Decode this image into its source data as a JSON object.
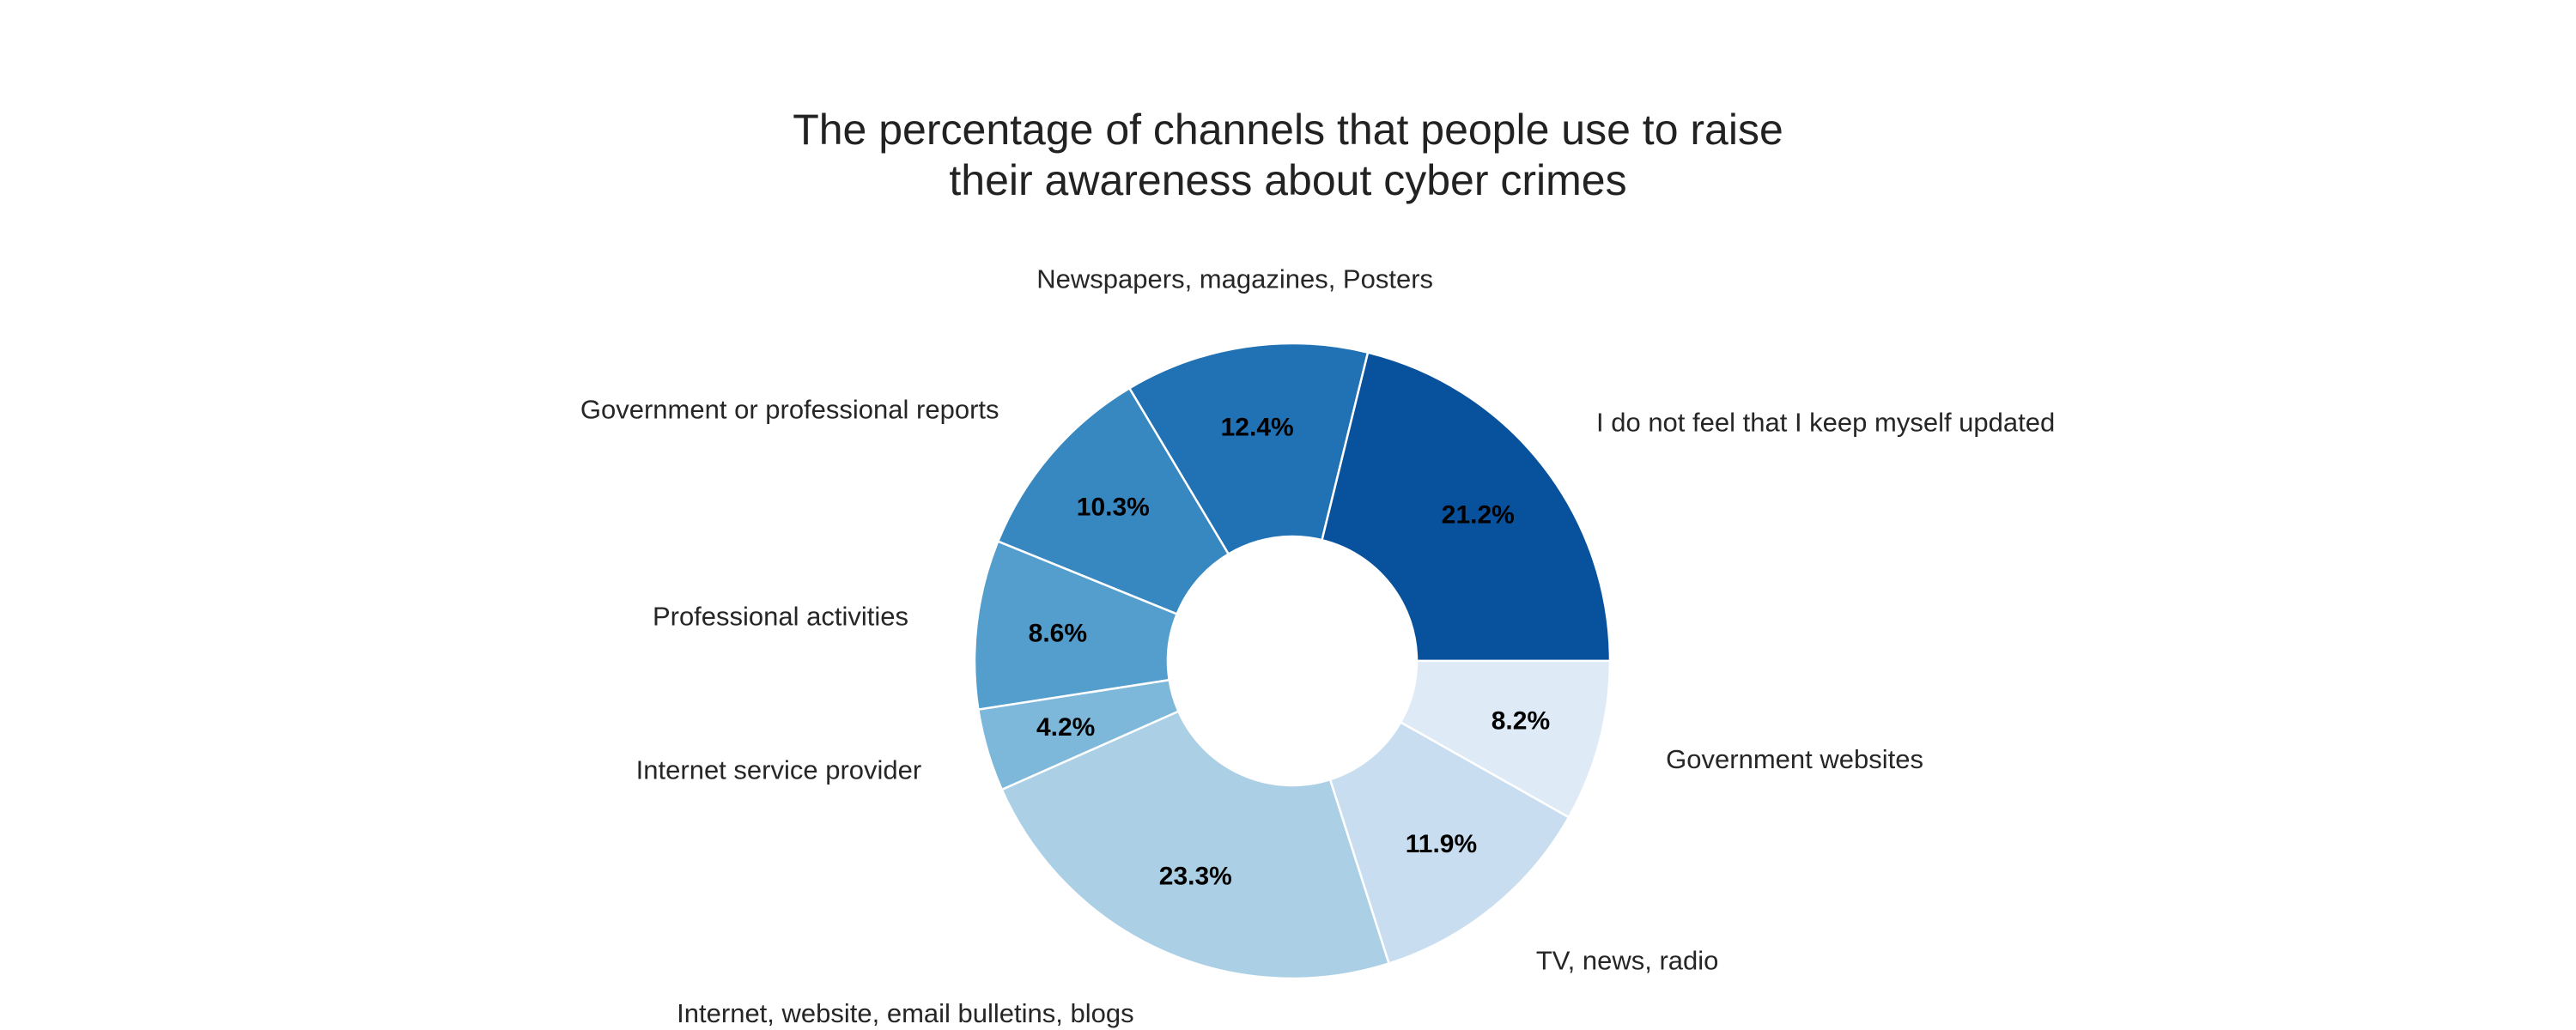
{
  "chart_data": {
    "type": "pie",
    "donut": true,
    "title": [
      "The percentage of channels that people use to raise",
      "their awareness about cyber crimes"
    ],
    "start_angle_deg": 0,
    "direction": "counterclockwise",
    "series": [
      {
        "label": "I do not feel that I keep myself updated",
        "value": 21.2,
        "display": "21.2%",
        "color": "#08519c"
      },
      {
        "label": "Newspapers, magazines, Posters",
        "value": 12.4,
        "display": "12.4%",
        "color": "#2171b5"
      },
      {
        "label": "Government or professional reports",
        "value": 10.3,
        "display": "10.3%",
        "color": "#3787c0"
      },
      {
        "label": "Professional activities",
        "value": 8.6,
        "display": "8.6%",
        "color": "#539ecd"
      },
      {
        "label": "Internet service provider",
        "value": 4.2,
        "display": "4.2%",
        "color": "#7db7da"
      },
      {
        "label": "Internet, website, email bulletins, blogs",
        "value": 23.3,
        "display": "23.3%",
        "color": "#abd0e6"
      },
      {
        "label": "TV, news, radio",
        "value": 11.9,
        "display": "11.9%",
        "color": "#c9ddf0"
      },
      {
        "label": "Government websites",
        "value": 8.2,
        "display": "8.2%",
        "color": "#deebf7"
      }
    ]
  }
}
